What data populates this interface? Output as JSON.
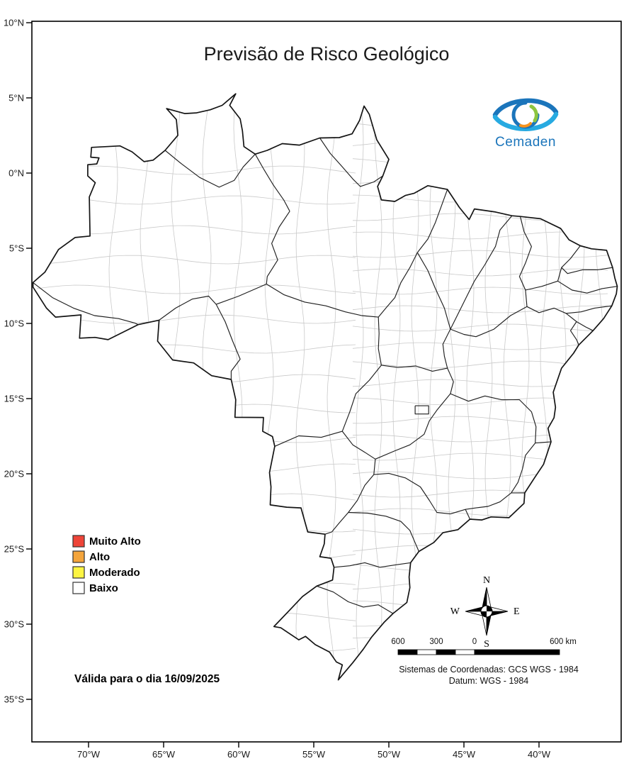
{
  "title": "Previsão de Risco Geológico",
  "logo": {
    "text": "Cemaden",
    "brand_color": "#1b75bb"
  },
  "icons": {
    "logo": "cemaden-eye-icon",
    "compass": "compass-rose-icon"
  },
  "axes": {
    "lat": [
      "10°N",
      "5°N",
      "0°N",
      "5°S",
      "10°S",
      "15°S",
      "20°S",
      "25°S",
      "30°S",
      "35°S"
    ],
    "lon": [
      "70°W",
      "65°W",
      "60°W",
      "55°W",
      "50°W",
      "45°W",
      "40°W"
    ]
  },
  "legend": {
    "items": [
      {
        "label": "Muito Alto",
        "color": "#ee4438"
      },
      {
        "label": "Alto",
        "color": "#f4a53c"
      },
      {
        "label": "Moderado",
        "color": "#fdf543"
      },
      {
        "label": "Baixo",
        "color": "#ffffff"
      }
    ]
  },
  "validity": "Válida para o dia 16/09/2025",
  "compass": {
    "n": "N",
    "s": "S",
    "e": "E",
    "w": "W"
  },
  "scalebar": {
    "labels": [
      "600",
      "300",
      "0",
      "600 km"
    ]
  },
  "coords_note": {
    "line1": "Sistemas de Coordenadas: GCS WGS - 1984",
    "line2": "Datum: WGS - 1984"
  }
}
